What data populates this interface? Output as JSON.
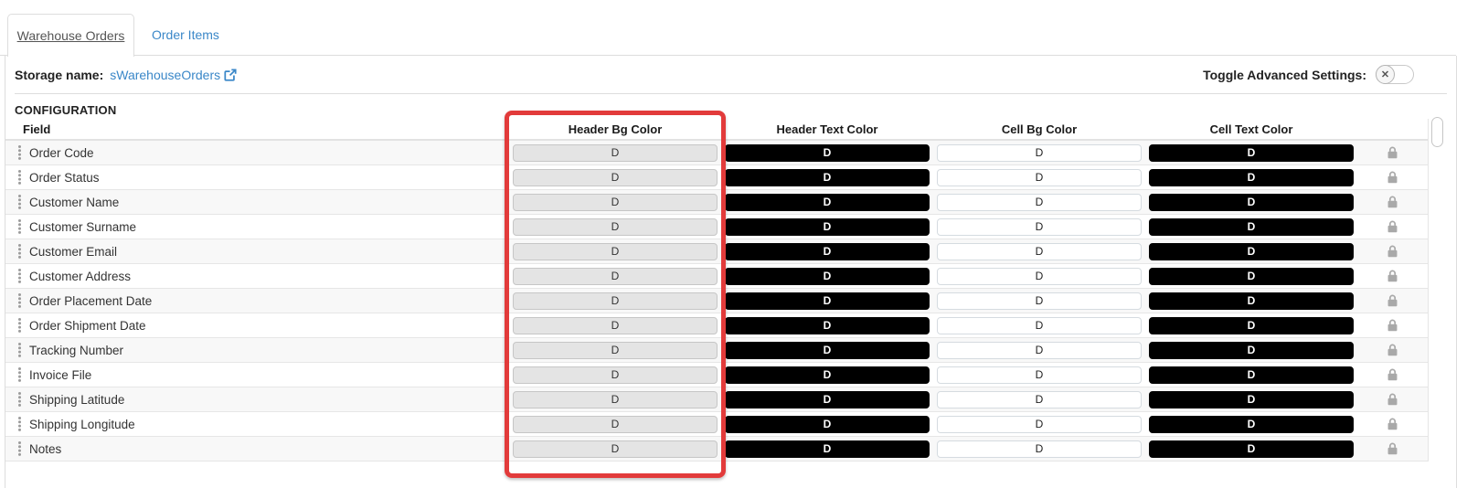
{
  "tabs": {
    "items": [
      {
        "label": "Warehouse Orders",
        "active": true
      },
      {
        "label": "Order Items",
        "active": false
      }
    ]
  },
  "toolbar": {
    "storage_label": "Storage name:",
    "storage_value": "sWarehouseOrders",
    "toggle_label": "Toggle Advanced Settings:",
    "toggle_state": "off",
    "toggle_glyph": "✕"
  },
  "section": {
    "title": "CONFIGURATION"
  },
  "table": {
    "columns": [
      "Field",
      "Header Bg Color",
      "Header Text Color",
      "Cell Bg Color",
      "Cell Text Color"
    ],
    "swatch_label": "D",
    "swatch_styles": [
      "gray",
      "black",
      "white",
      "black"
    ],
    "rows": [
      "Order Code",
      "Order Status",
      "Customer Name",
      "Customer Surname",
      "Customer Email",
      "Customer Address",
      "Order Placement Date",
      "Order Shipment Date",
      "Tracking Number",
      "Invoice File",
      "Shipping Latitude",
      "Shipping Longitude",
      "Notes"
    ]
  },
  "highlight": {
    "target_column": "Header Bg Color",
    "color": "#e23b3b"
  },
  "colors": {
    "link_blue": "#3a87c8",
    "swatch_gray": "#e4e4e4",
    "swatch_black": "#000000",
    "swatch_white": "#ffffff",
    "highlight_red": "#e23b3b"
  }
}
